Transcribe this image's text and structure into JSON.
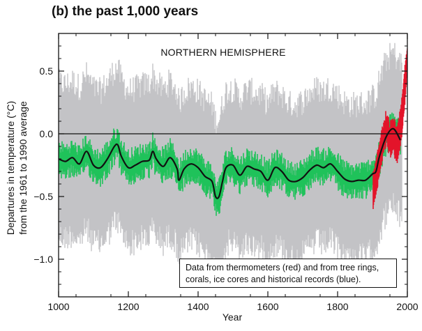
{
  "title": "(b) the past 1,000 years",
  "chart_data": {
    "type": "line",
    "panel_label": "NORTHERN HEMISPHERE",
    "xlabel": "Year",
    "ylabel_lines": [
      "Departures in temperature (°C)",
      "from the 1961 to 1990 average"
    ],
    "xlim": [
      1000,
      2000
    ],
    "ylim": [
      -1.3,
      0.8
    ],
    "x_ticks": [
      1000,
      1200,
      1400,
      1600,
      1800,
      2000
    ],
    "y_ticks": [
      0.5,
      0.0,
      -0.5,
      -1.0
    ],
    "y_tick_labels": [
      "0.5",
      "0.0",
      "−0.5",
      "−1.0"
    ],
    "reference_line_y": 0.0,
    "legend_lines": [
      "Data from thermometers (red) and from tree rings,",
      "corals, ice cores and historical records (blue)."
    ],
    "colors": {
      "uncertainty": "#c3c3c6",
      "proxy_annual": "#1fc25a",
      "instrumental": "#e3142a",
      "smoothed": "#111111"
    },
    "series": [
      {
        "role": "proxy reconstruction, 50-year smoothed",
        "x": [
          1000,
          1020,
          1040,
          1060,
          1080,
          1100,
          1120,
          1140,
          1160,
          1170,
          1180,
          1200,
          1220,
          1240,
          1260,
          1270,
          1280,
          1300,
          1320,
          1340,
          1345,
          1360,
          1380,
          1400,
          1420,
          1440,
          1450,
          1460,
          1470,
          1480,
          1500,
          1520,
          1540,
          1560,
          1580,
          1600,
          1620,
          1640,
          1660,
          1680,
          1700,
          1720,
          1740,
          1760,
          1780,
          1800,
          1820,
          1840,
          1860,
          1880,
          1900,
          1910,
          1920,
          1940,
          1960,
          1980
        ],
        "y": [
          -0.2,
          -0.22,
          -0.19,
          -0.24,
          -0.14,
          -0.25,
          -0.27,
          -0.2,
          -0.1,
          -0.09,
          -0.18,
          -0.27,
          -0.25,
          -0.22,
          -0.21,
          -0.14,
          -0.2,
          -0.26,
          -0.19,
          -0.28,
          -0.37,
          -0.28,
          -0.24,
          -0.27,
          -0.34,
          -0.38,
          -0.5,
          -0.5,
          -0.38,
          -0.27,
          -0.25,
          -0.33,
          -0.26,
          -0.28,
          -0.3,
          -0.37,
          -0.27,
          -0.3,
          -0.37,
          -0.38,
          -0.35,
          -0.29,
          -0.25,
          -0.27,
          -0.24,
          -0.3,
          -0.36,
          -0.38,
          -0.37,
          -0.37,
          -0.32,
          -0.3,
          -0.18,
          -0.02,
          0.04,
          -0.05
        ]
      },
      {
        "role": "proxy reconstruction, annual envelope (green)",
        "lower_offset": -0.12,
        "upper_offset": 0.12
      },
      {
        "role": "uncertainty range (grey)",
        "lower_offset": -0.5,
        "upper_offset": 0.5
      },
      {
        "role": "instrumental (red)",
        "x": [
          1902,
          1910,
          1920,
          1930,
          1940,
          1950,
          1960,
          1970,
          1980,
          1985,
          1990,
          1995,
          2000
        ],
        "y": [
          -0.45,
          -0.35,
          -0.2,
          -0.05,
          0.05,
          -0.05,
          0.0,
          -0.1,
          0.05,
          0.15,
          0.3,
          0.45,
          0.6
        ]
      }
    ]
  }
}
